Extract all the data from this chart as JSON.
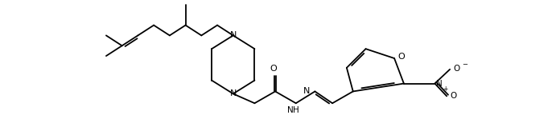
{
  "background": "#ffffff",
  "lw": 1.3,
  "figsize": [
    6.96,
    1.44
  ],
  "dpi": 100,
  "xlim": [
    0,
    696
  ],
  "ylim": [
    0,
    144
  ]
}
